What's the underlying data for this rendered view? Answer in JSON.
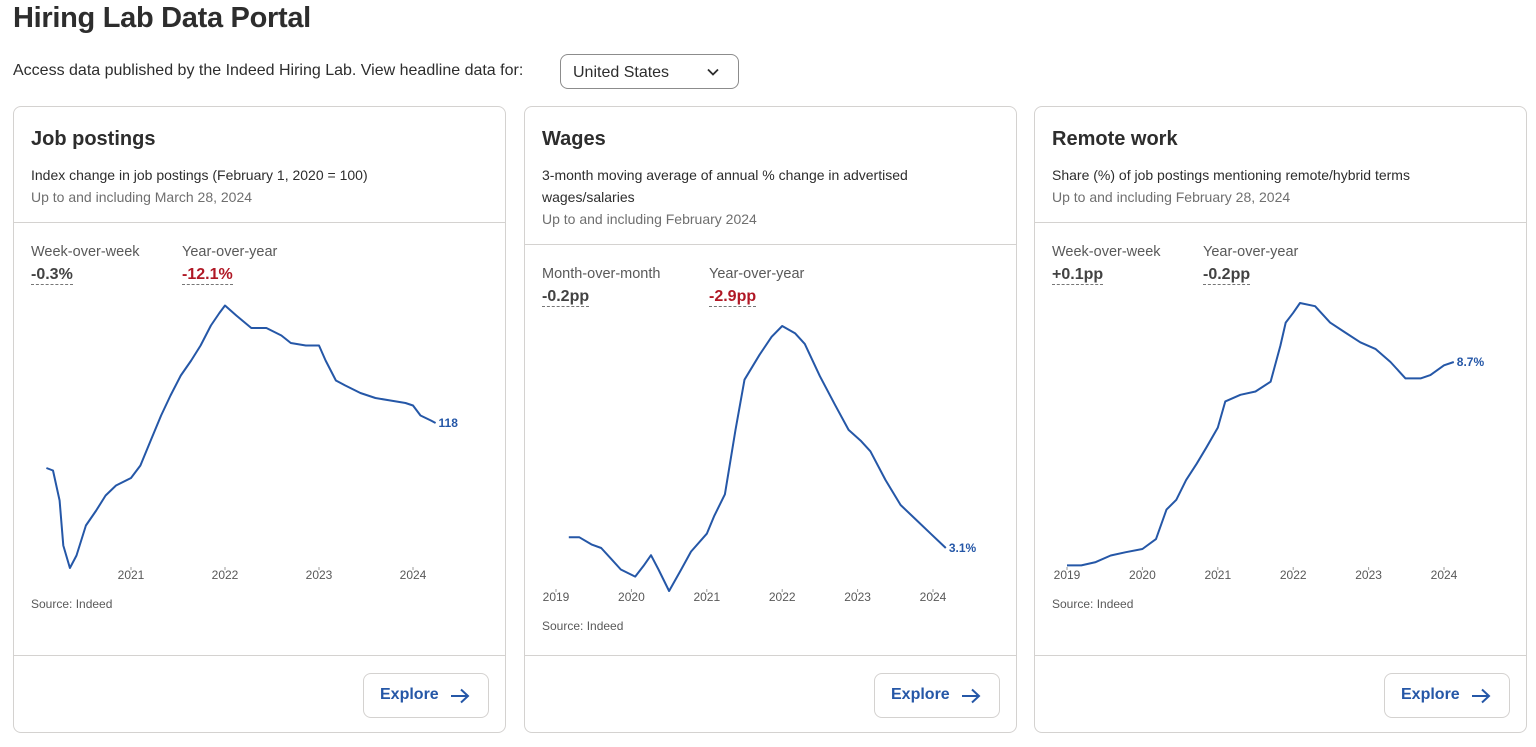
{
  "page": {
    "title": "Hiring Lab Data Portal",
    "intro": "Access data published by the Indeed Hiring Lab. View headline data for:",
    "country_select": {
      "value": "United States",
      "icon": "chevron-down-icon"
    }
  },
  "colors": {
    "line": "#2557a7",
    "negative": "#b01825",
    "border": "#d4d2d0"
  },
  "cards": [
    {
      "title": "Job postings",
      "description": "Index change in job postings (February 1, 2020 = 100)",
      "updated": "Up to and including March 28, 2024",
      "stats": [
        {
          "label": "Week-over-week",
          "value": "-0.3%"
        },
        {
          "label": "Year-over-year",
          "value": "-12.1%"
        }
      ],
      "source": "Source: Indeed",
      "explore_label": "Explore",
      "end_label": "118"
    },
    {
      "title": "Wages",
      "description": "3-month moving average of annual % change in advertised wages/salaries",
      "updated": "Up to and including February 2024",
      "stats": [
        {
          "label": "Month-over-month",
          "value": "-0.2pp"
        },
        {
          "label": "Year-over-year",
          "value": "-2.9pp"
        }
      ],
      "source": "Source: Indeed",
      "explore_label": "Explore",
      "end_label": "3.1%"
    },
    {
      "title": "Remote work",
      "description": "Share (%) of job postings mentioning remote/hybrid terms",
      "updated": "Up to and including February 28, 2024",
      "stats": [
        {
          "label": "Week-over-week",
          "value": "+0.1pp"
        },
        {
          "label": "Year-over-year",
          "value": "-0.2pp"
        }
      ],
      "source": "Source: Indeed",
      "explore_label": "Explore",
      "end_label": "8.7%"
    }
  ],
  "chart_data": [
    {
      "type": "line",
      "title": "Job postings",
      "x_ticks": [
        "2021",
        "2022",
        "2023",
        "2024"
      ],
      "grid": false,
      "x": [
        2020.1,
        2020.17,
        2020.24,
        2020.28,
        2020.35,
        2020.42,
        2020.52,
        2020.63,
        2020.73,
        2020.84,
        2021.0,
        2021.1,
        2021.21,
        2021.32,
        2021.42,
        2021.53,
        2021.64,
        2021.74,
        2021.85,
        2021.94,
        2022.0,
        2022.12,
        2022.28,
        2022.44,
        2022.6,
        2022.7,
        2022.86,
        2023.0,
        2023.07,
        2023.18,
        2023.28,
        2023.44,
        2023.6,
        2023.76,
        2023.92,
        2024.0,
        2024.08,
        2024.19,
        2024.24
      ],
      "y": [
        100,
        99,
        87,
        69,
        60,
        65,
        77,
        83,
        89,
        93,
        96,
        101,
        111,
        121,
        129,
        137,
        143,
        149,
        157,
        162,
        165,
        161,
        156,
        156,
        153,
        150,
        149,
        149,
        143,
        135,
        133,
        130,
        128,
        127,
        126,
        125,
        121,
        119,
        118
      ]
    },
    {
      "type": "line",
      "title": "Wages",
      "x_ticks": [
        "2019",
        "2020",
        "2021",
        "2022",
        "2023",
        "2024"
      ],
      "grid": false,
      "x": [
        2019.17,
        2019.31,
        2019.47,
        2019.6,
        2019.73,
        2019.86,
        2020.05,
        2020.16,
        2020.26,
        2020.36,
        2020.5,
        2020.66,
        2020.79,
        2021.0,
        2021.1,
        2021.24,
        2021.38,
        2021.5,
        2021.7,
        2021.86,
        2022.0,
        2022.17,
        2022.3,
        2022.5,
        2022.7,
        2022.88,
        2023.04,
        2023.17,
        2023.37,
        2023.57,
        2023.77,
        2023.97,
        2024.17
      ],
      "y": [
        3.4,
        3.4,
        3.2,
        3.1,
        2.8,
        2.5,
        2.3,
        2.6,
        2.9,
        2.5,
        1.9,
        2.5,
        3.0,
        3.5,
        4.0,
        4.6,
        6.4,
        7.8,
        8.5,
        9.0,
        9.3,
        9.1,
        8.8,
        7.9,
        7.1,
        6.4,
        6.1,
        5.8,
        5.0,
        4.3,
        3.9,
        3.5,
        3.1
      ]
    },
    {
      "type": "line",
      "title": "Remote work",
      "x_ticks": [
        "2019",
        "2020",
        "2021",
        "2022",
        "2023",
        "2024"
      ],
      "grid": false,
      "x": [
        2019.0,
        2019.19,
        2019.38,
        2019.58,
        2019.78,
        2020.0,
        2020.18,
        2020.32,
        2020.45,
        2020.58,
        2020.72,
        2020.85,
        2021.0,
        2021.1,
        2021.3,
        2021.5,
        2021.7,
        2021.83,
        2021.9,
        2022.0,
        2022.09,
        2022.29,
        2022.49,
        2022.69,
        2022.89,
        2023.09,
        2023.29,
        2023.49,
        2023.69,
        2023.82,
        2024.0,
        2024.13
      ],
      "y": [
        2.5,
        2.5,
        2.6,
        2.8,
        2.9,
        3.0,
        3.3,
        4.2,
        4.5,
        5.1,
        5.6,
        6.1,
        6.7,
        7.5,
        7.7,
        7.8,
        8.1,
        9.2,
        9.9,
        10.2,
        10.5,
        10.4,
        9.9,
        9.6,
        9.3,
        9.1,
        8.7,
        8.2,
        8.2,
        8.3,
        8.6,
        8.7
      ]
    }
  ]
}
